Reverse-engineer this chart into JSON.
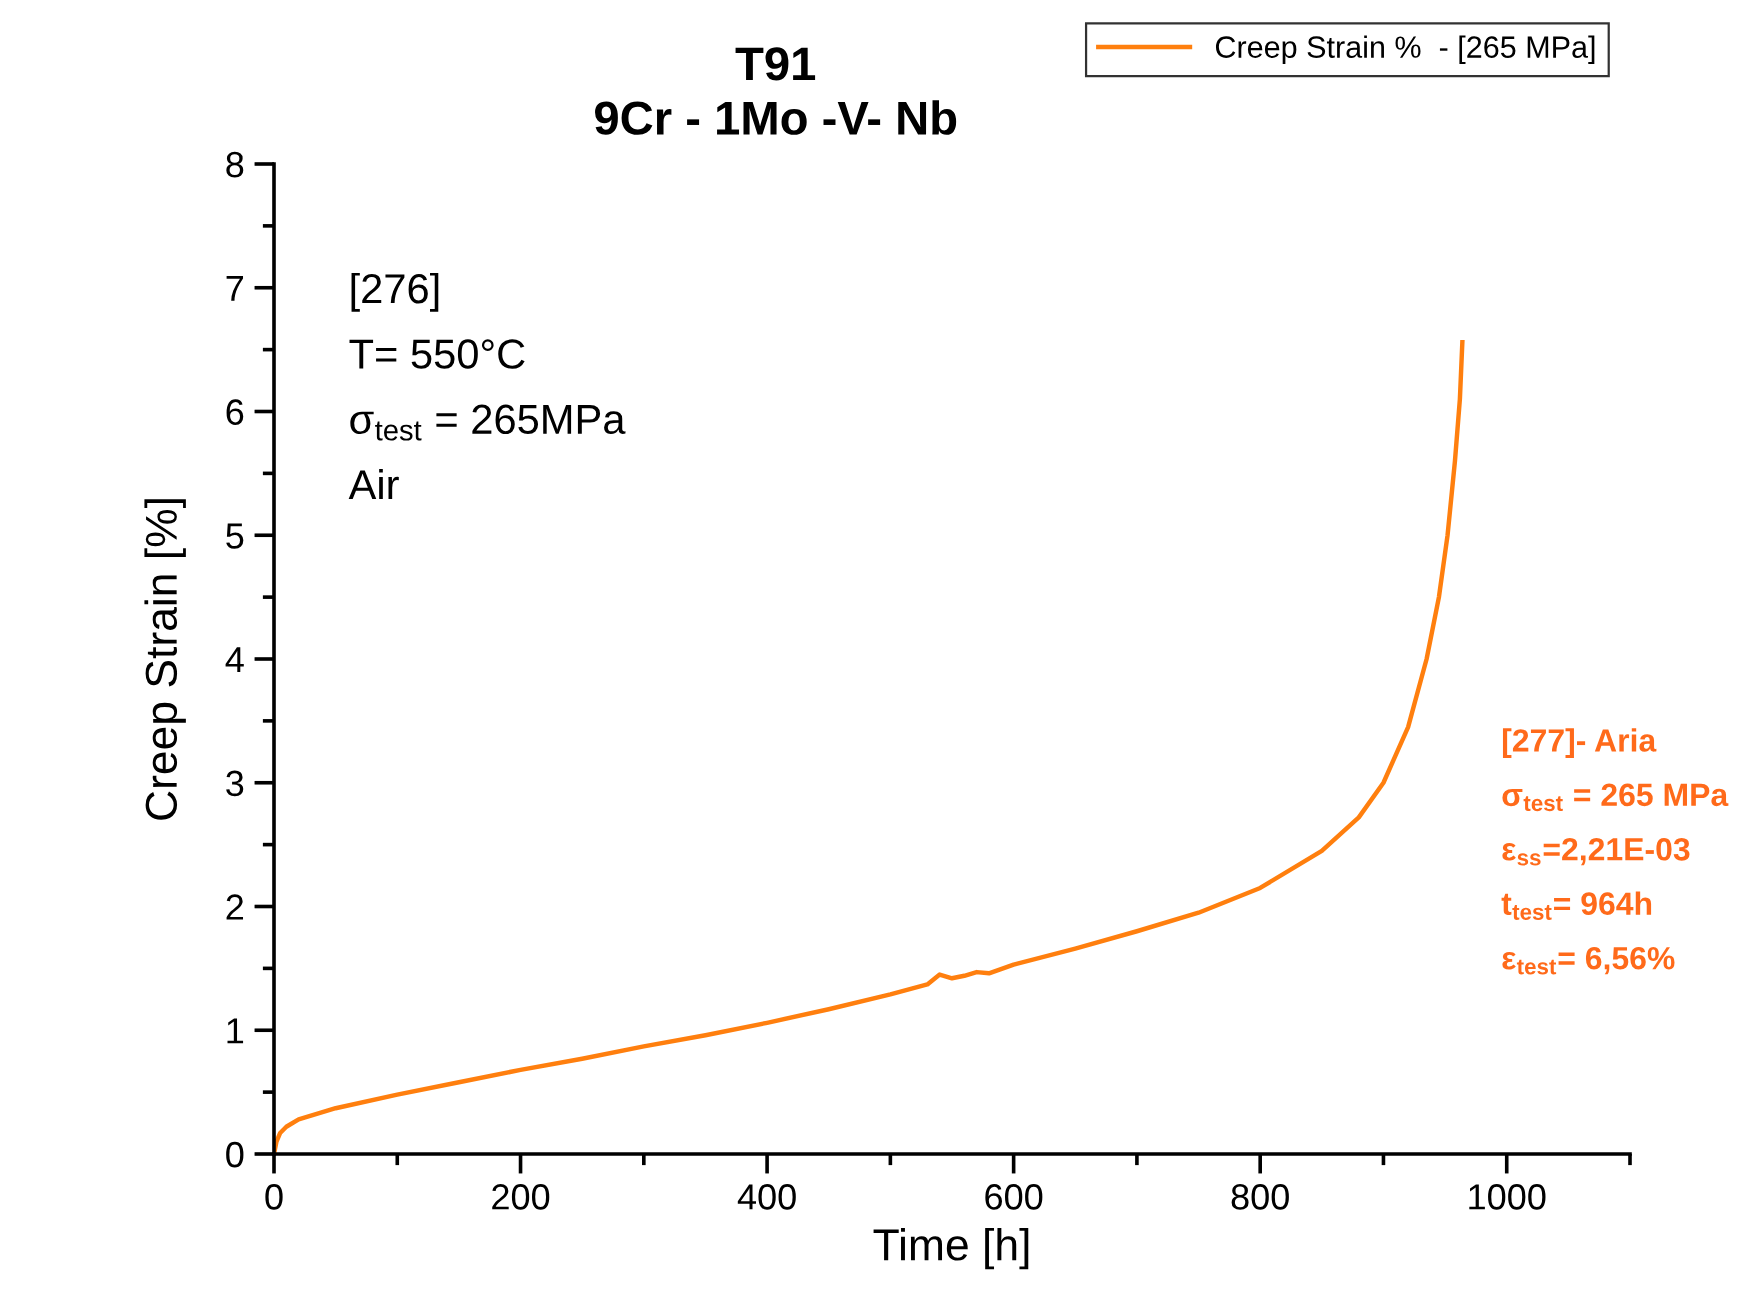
{
  "chart_data": {
    "type": "line",
    "title": "T91\n9Cr - 1Mo -V- Nb",
    "xlabel": "Time [h]",
    "ylabel": "Creep Strain [%]",
    "xlim": [
      0,
      1100
    ],
    "xticks": [
      0,
      200,
      400,
      600,
      800,
      1000
    ],
    "ylim": [
      0,
      8
    ],
    "yticks": [
      0,
      1,
      2,
      3,
      4,
      5,
      6,
      7,
      8
    ],
    "grid": false,
    "legend": "top right",
    "marker": "none",
    "line_style": "solid",
    "series": [
      {
        "name": "Creep Strain %  - [265 MPa]",
        "color": "#ff7f0e",
        "x": [
          0,
          2,
          5,
          10,
          20,
          50,
          100,
          150,
          200,
          250,
          300,
          350,
          400,
          450,
          500,
          530,
          540,
          550,
          560,
          570,
          580,
          600,
          650,
          700,
          750,
          800,
          850,
          880,
          900,
          920,
          935,
          945,
          952,
          958,
          962,
          964
        ],
        "values": [
          0,
          0.1,
          0.17,
          0.22,
          0.28,
          0.37,
          0.48,
          0.58,
          0.68,
          0.77,
          0.87,
          0.96,
          1.06,
          1.17,
          1.29,
          1.37,
          1.45,
          1.42,
          1.44,
          1.47,
          1.46,
          1.53,
          1.66,
          1.8,
          1.95,
          2.15,
          2.45,
          2.72,
          3.0,
          3.45,
          4.0,
          4.5,
          5.0,
          5.6,
          6.1,
          6.56
        ]
      }
    ],
    "annotations": [
      "[276]\nT= 550°C\nσ$_{test}$ = 265MPa\nAir",
      "[277]- Aria\nσ$_{test}$ = 265 MPa\nε$_{ss}$=2,21E-03\nt$_{test}$= 964h\nε$_{test}$= 6,56%"
    ]
  }
}
